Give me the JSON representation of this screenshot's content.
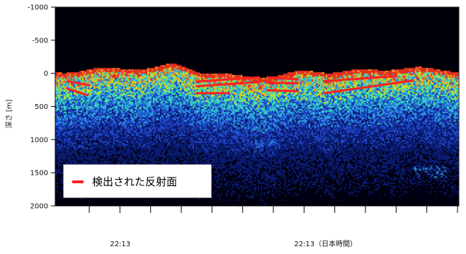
{
  "chart_data": {
    "type": "heatmap",
    "title": "",
    "ylabel": "深さ [m]",
    "yticks": [
      "-1000",
      "-500",
      "0",
      "500",
      "1000",
      "1500",
      "2000"
    ],
    "ylim": [
      -1000,
      2000
    ],
    "y_inverted": true,
    "xtick_labels": [
      {
        "label": "22:13",
        "index": 1
      },
      {
        "label": "22:13（日本時間）",
        "index": 7
      }
    ],
    "x_tick_count": 13,
    "legend": {
      "label": "検出された反射面",
      "color": "#ff2020",
      "placement": "bottom-left"
    },
    "surface_depth_m": 0,
    "reflector_color": "#ff2020",
    "reflectors": [
      {
        "x": [
          0.03,
          0.085
        ],
        "depth": [
          120,
          180
        ]
      },
      {
        "x": [
          0.03,
          0.08
        ],
        "depth": [
          230,
          330
        ]
      },
      {
        "x": [
          0.35,
          0.505
        ],
        "depth": [
          125,
          60
        ]
      },
      {
        "x": [
          0.35,
          0.505
        ],
        "depth": [
          195,
          130
        ]
      },
      {
        "x": [
          0.35,
          0.43
        ],
        "depth": [
          300,
          300
        ]
      },
      {
        "x": [
          0.525,
          0.6
        ],
        "depth": [
          60,
          90
        ]
      },
      {
        "x": [
          0.525,
          0.6
        ],
        "depth": [
          140,
          150
        ]
      },
      {
        "x": [
          0.525,
          0.6
        ],
        "depth": [
          255,
          270
        ]
      },
      {
        "x": [
          0.665,
          0.845
        ],
        "depth": [
          120,
          40
        ]
      },
      {
        "x": [
          0.665,
          0.885
        ],
        "depth": [
          300,
          110
        ]
      }
    ],
    "colormap": [
      "#000010",
      "#0a1a6e",
      "#1e47c8",
      "#2aa0e0",
      "#3ce0b0",
      "#c8e020",
      "#f0a020",
      "#e03020"
    ]
  }
}
